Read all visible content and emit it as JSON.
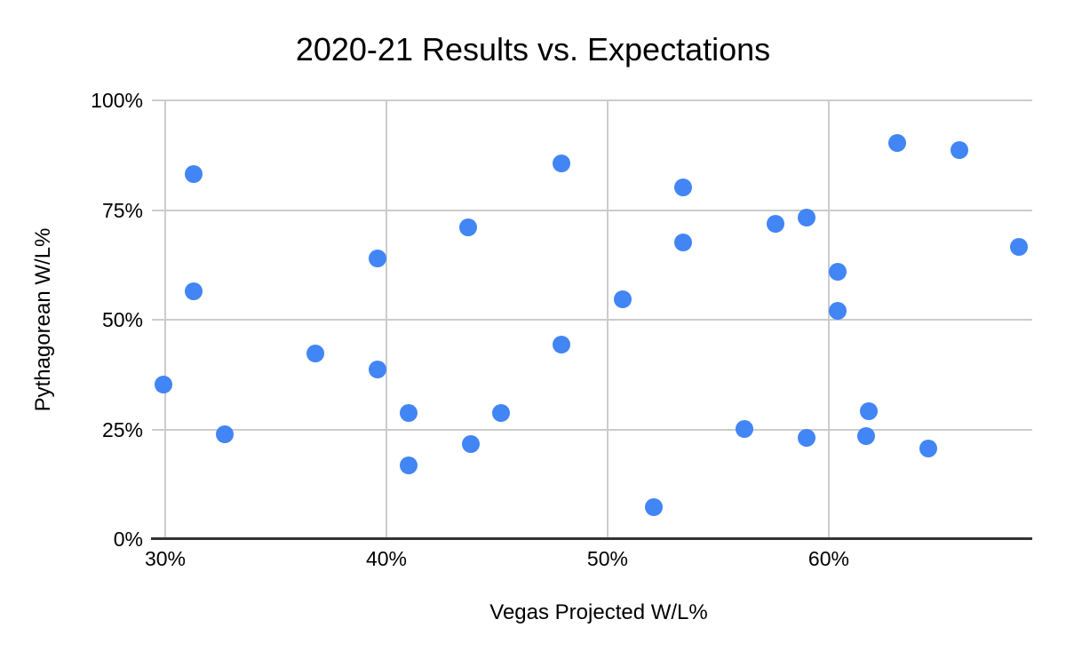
{
  "colors": {
    "point": "#4285f4",
    "gridline": "#cccccc",
    "axis_line": "#333333",
    "text": "#000000"
  },
  "chart_data": {
    "type": "scatter",
    "title": "2020-21 Results vs. Expectations",
    "xlabel": "Vegas Projected W/L%",
    "ylabel": "Pythagorean W/L%",
    "xlim": [
      30,
      69.2
    ],
    "ylim": [
      0,
      100
    ],
    "grid": true,
    "legend_position": "none",
    "x_ticks": [
      {
        "value": 30,
        "label": "30%"
      },
      {
        "value": 40,
        "label": "40%"
      },
      {
        "value": 50,
        "label": "50%"
      },
      {
        "value": 60,
        "label": "60%"
      }
    ],
    "y_ticks": [
      {
        "value": 0,
        "label": "0%"
      },
      {
        "value": 25,
        "label": "25%"
      },
      {
        "value": 50,
        "label": "50%"
      },
      {
        "value": 75,
        "label": "75%"
      },
      {
        "value": 100,
        "label": "100%"
      }
    ],
    "points": [
      {
        "x": 29.9,
        "y": 35.2
      },
      {
        "x": 31.3,
        "y": 83.2
      },
      {
        "x": 31.3,
        "y": 56.4
      },
      {
        "x": 32.7,
        "y": 23.8
      },
      {
        "x": 36.8,
        "y": 42.3
      },
      {
        "x": 39.6,
        "y": 63.9
      },
      {
        "x": 39.6,
        "y": 38.6
      },
      {
        "x": 41.0,
        "y": 28.7
      },
      {
        "x": 41.0,
        "y": 16.9
      },
      {
        "x": 43.7,
        "y": 71.0
      },
      {
        "x": 43.8,
        "y": 21.6
      },
      {
        "x": 45.2,
        "y": 28.7
      },
      {
        "x": 47.9,
        "y": 85.6
      },
      {
        "x": 47.9,
        "y": 44.3
      },
      {
        "x": 50.7,
        "y": 54.6
      },
      {
        "x": 52.1,
        "y": 7.2
      },
      {
        "x": 53.4,
        "y": 80.1
      },
      {
        "x": 53.4,
        "y": 67.6
      },
      {
        "x": 56.2,
        "y": 25.2
      },
      {
        "x": 57.6,
        "y": 71.8
      },
      {
        "x": 59.0,
        "y": 73.3
      },
      {
        "x": 59.0,
        "y": 23.0
      },
      {
        "x": 60.4,
        "y": 60.9
      },
      {
        "x": 60.4,
        "y": 52.0
      },
      {
        "x": 61.8,
        "y": 29.1
      },
      {
        "x": 61.7,
        "y": 23.4
      },
      {
        "x": 63.1,
        "y": 90.3
      },
      {
        "x": 64.5,
        "y": 20.6
      },
      {
        "x": 65.9,
        "y": 88.7
      },
      {
        "x": 68.6,
        "y": 66.6
      }
    ]
  }
}
